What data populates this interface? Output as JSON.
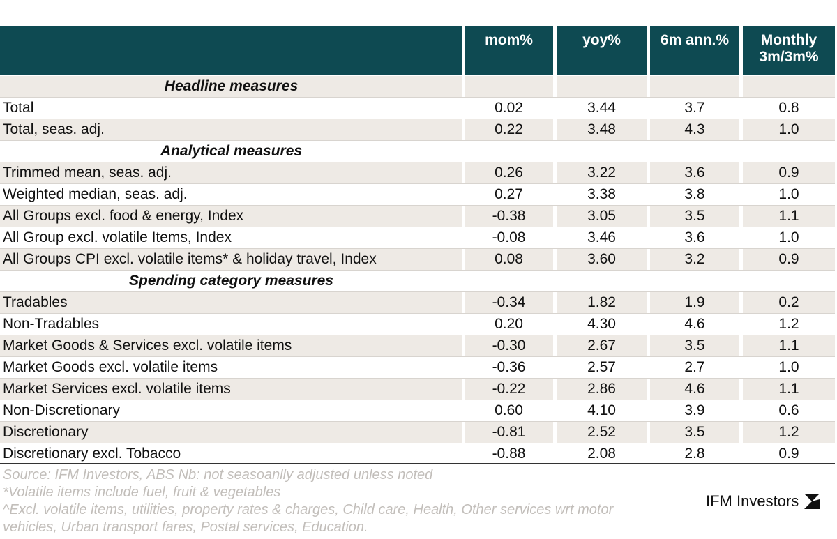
{
  "table": {
    "columns": [
      "mom%",
      "yoy%",
      "6m ann.%",
      "Monthly 3m/3m%"
    ],
    "rows": [
      {
        "section": "Headline measures"
      },
      {
        "label": "Total",
        "values": [
          "0.02",
          "3.44",
          "3.7",
          "0.8"
        ]
      },
      {
        "label": "Total, seas. adj.",
        "values": [
          "0.22",
          "3.48",
          "4.3",
          "1.0"
        ]
      },
      {
        "section": "Analytical measures"
      },
      {
        "label": "Trimmed mean, seas. adj.",
        "values": [
          "0.26",
          "3.22",
          "3.6",
          "0.9"
        ]
      },
      {
        "label": "Weighted median, seas. adj.",
        "values": [
          "0.27",
          "3.38",
          "3.8",
          "1.0"
        ]
      },
      {
        "label": "All Groups excl. food & energy, Index",
        "values": [
          "-0.38",
          "3.05",
          "3.5",
          "1.1"
        ]
      },
      {
        "label": "All Group excl. volatile Items, Index",
        "values": [
          "-0.08",
          "3.46",
          "3.6",
          "1.0"
        ]
      },
      {
        "label": "All Groups CPI excl. volatile items* & holiday travel, Index",
        "values": [
          "0.08",
          "3.60",
          "3.2",
          "0.9"
        ]
      },
      {
        "section": "Spending category measures"
      },
      {
        "label": "Tradables",
        "values": [
          "-0.34",
          "1.82",
          "1.9",
          "0.2"
        ]
      },
      {
        "label": "Non-Tradables",
        "values": [
          "0.20",
          "4.30",
          "4.6",
          "1.2"
        ]
      },
      {
        "label": "Market Goods & Services excl. volatile items",
        "values": [
          "-0.30",
          "2.67",
          "3.5",
          "1.1"
        ]
      },
      {
        "label": "Market Goods excl. volatile items",
        "values": [
          "-0.36",
          "2.57",
          "2.7",
          "1.0"
        ]
      },
      {
        "label": "Market Services excl. volatile items",
        "values": [
          "-0.22",
          "2.86",
          "4.6",
          "1.1"
        ]
      },
      {
        "label": "Non-Discretionary",
        "values": [
          "0.60",
          "4.10",
          "3.9",
          "0.6"
        ]
      },
      {
        "label": "Discretionary",
        "values": [
          "-0.81",
          "2.52",
          "3.5",
          "1.2"
        ]
      },
      {
        "label": "Discretionary excl. Tobacco",
        "values": [
          "-0.88",
          "2.08",
          "2.8",
          "0.9"
        ]
      }
    ]
  },
  "notes": [
    "Source: IFM Investors, ABS   Nb: not seasoanlly adjusted unless noted",
    "*Volatile items include fuel, fruit & vegetables",
    "^Excl. volatile items, utilities, property rates & charges, Child care, Health, Other services wrt motor",
    "vehicles, Urban transport fares, Postal services, Education."
  ],
  "logo": "IFM Investors"
}
